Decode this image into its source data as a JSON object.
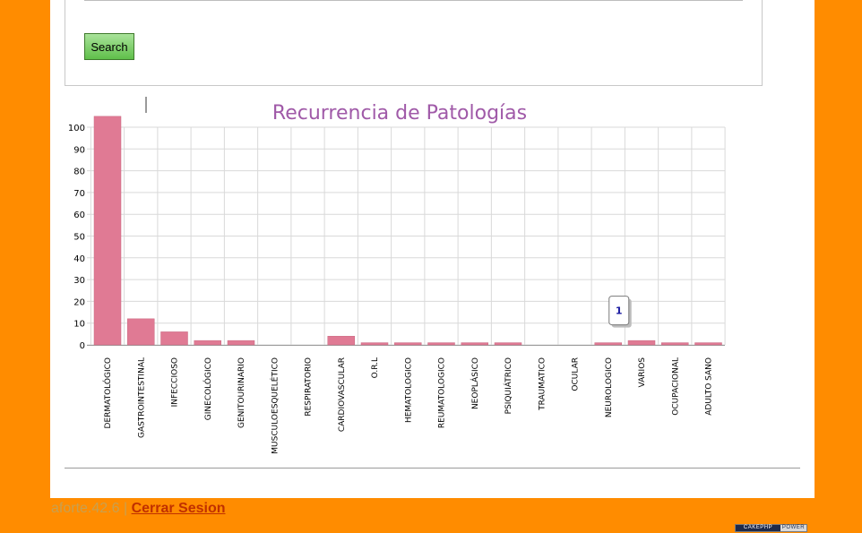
{
  "search": {
    "button_label": "Search"
  },
  "chart_data": {
    "type": "bar",
    "title": "Recurrencia de Patologías",
    "xlabel": "",
    "ylabel": "",
    "ylim": [
      0,
      100
    ],
    "yticks": [
      0,
      10,
      20,
      30,
      40,
      50,
      60,
      70,
      80,
      90,
      100
    ],
    "grid": true,
    "bar_color": "#e07a94",
    "categories": [
      "DERMATOLÓGICO",
      "GASTROINTESTINAL",
      "INFECCIOSO",
      "GINECOLÓGICO",
      "GENITOURINARIO",
      "MUSCULOESQUELÉTICO",
      "RESPIRATORIO",
      "CARDIOVASCULAR",
      "O.R.L",
      "HEMATOLOGICO",
      "REUMATOLOGICO",
      "NEOPLÁSICO",
      "PSIQUIÁTRICO",
      "TRAUMATICO",
      "OCULAR",
      "NEUROLOGICO",
      "VARIOS",
      "OCUPACIONAL",
      "ADULTO SANO"
    ],
    "values": [
      105,
      12,
      6,
      2,
      2,
      0,
      0,
      4,
      1,
      1,
      1,
      1,
      1,
      0,
      0,
      1,
      2,
      1,
      1
    ],
    "tooltip": {
      "category": "NEUROLOGICO",
      "text": "1"
    }
  },
  "footer": {
    "user": "aforte.42.6",
    "separator": "|",
    "logout_label": "Cerrar Sesion"
  },
  "badge": {
    "left": "CAKEPHP",
    "right": "POWER"
  }
}
